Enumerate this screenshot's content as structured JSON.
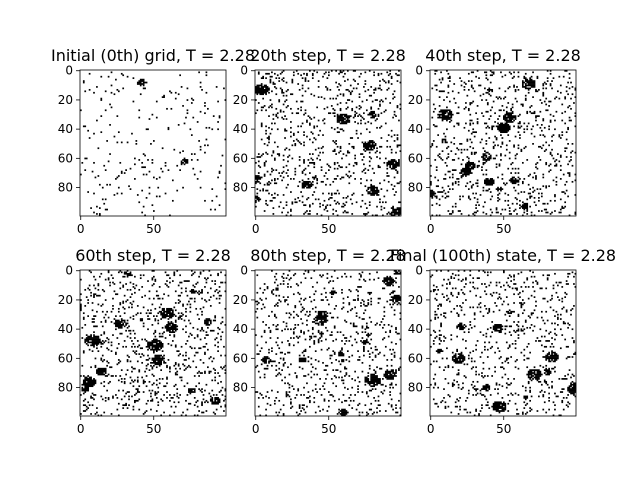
{
  "chart_data": [
    {
      "type": "heatmap",
      "title": "Initial (0th) grid, T = 2.28",
      "xticks": [
        "0",
        "50"
      ],
      "yticks": [
        "0",
        "20",
        "40",
        "60",
        "80"
      ],
      "grid_size": 100,
      "colormap": "binary",
      "lattice_seed": 11,
      "minority_density": 0.025,
      "cluster_count": 2,
      "xlim": [
        0,
        99
      ],
      "ylim": [
        99,
        0
      ]
    },
    {
      "type": "heatmap",
      "title": "20th step, T = 2.28",
      "xticks": [
        "0",
        "50"
      ],
      "yticks": [
        "0",
        "20",
        "40",
        "60",
        "80"
      ],
      "grid_size": 100,
      "colormap": "binary",
      "lattice_seed": 23,
      "minority_density": 0.08,
      "cluster_count": 10,
      "xlim": [
        0,
        99
      ],
      "ylim": [
        99,
        0
      ]
    },
    {
      "type": "heatmap",
      "title": "40th step, T = 2.28",
      "xticks": [
        "0",
        "50"
      ],
      "yticks": [
        "0",
        "20",
        "40",
        "60",
        "80"
      ],
      "grid_size": 100,
      "colormap": "binary",
      "lattice_seed": 37,
      "minority_density": 0.08,
      "cluster_count": 14,
      "xlim": [
        0,
        99
      ],
      "ylim": [
        99,
        0
      ]
    },
    {
      "type": "heatmap",
      "title": "60th step, T = 2.28",
      "xticks": [
        "0",
        "50"
      ],
      "yticks": [
        "0",
        "20",
        "40",
        "60",
        "80"
      ],
      "grid_size": 100,
      "colormap": "binary",
      "lattice_seed": 41,
      "minority_density": 0.09,
      "cluster_count": 16,
      "xlim": [
        0,
        99
      ],
      "ylim": [
        99,
        0
      ]
    },
    {
      "type": "heatmap",
      "title": "80th step, T = 2.28",
      "xticks": [
        "0",
        "50"
      ],
      "yticks": [
        "0",
        "20",
        "40",
        "60",
        "80"
      ],
      "grid_size": 100,
      "colormap": "binary",
      "lattice_seed": 53,
      "minority_density": 0.08,
      "cluster_count": 15,
      "xlim": [
        0,
        99
      ],
      "ylim": [
        99,
        0
      ]
    },
    {
      "type": "heatmap",
      "title": "Final (100th) state, T = 2.28",
      "xticks": [
        "0",
        "50"
      ],
      "yticks": [
        "0",
        "20",
        "40",
        "60",
        "80"
      ],
      "grid_size": 100,
      "colormap": "binary",
      "lattice_seed": 67,
      "minority_density": 0.07,
      "cluster_count": 13,
      "xlim": [
        0,
        99
      ],
      "ylim": [
        99,
        0
      ]
    }
  ]
}
